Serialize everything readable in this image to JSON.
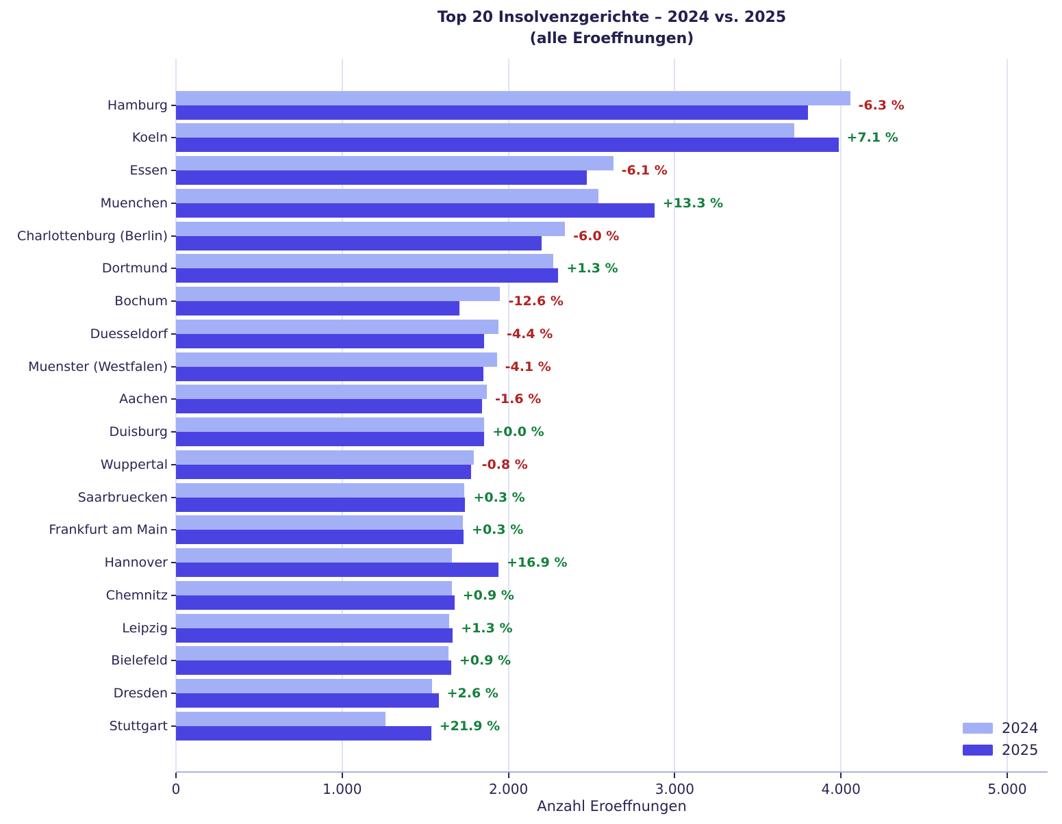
{
  "title": {
    "line1": "Top 20 Insolvenzgerichte – 2024 vs. 2025",
    "line2": "(alle Eroeffnungen)"
  },
  "chart_data": {
    "type": "bar",
    "orientation": "horizontal",
    "title": "Top 20 Insolvenzgerichte – 2024 vs. 2025 (alle Eroeffnungen)",
    "xlabel": "Anzahl Eroeffnungen",
    "ylabel": "",
    "xlim": [
      0,
      5240
    ],
    "grid": true,
    "legend_position": "lower right",
    "categories": [
      "Hamburg",
      "Koeln",
      "Essen",
      "Muenchen",
      "Charlottenburg (Berlin)",
      "Dortmund",
      "Bochum",
      "Duesseldorf",
      "Muenster (Westfalen)",
      "Aachen",
      "Duisburg",
      "Wuppertal",
      "Saarbruecken",
      "Frankfurt am Main",
      "Hannover",
      "Chemnitz",
      "Leipzig",
      "Bielefeld",
      "Dresden",
      "Stuttgart"
    ],
    "series": [
      {
        "name": "2024",
        "color": "#a4b0f6",
        "values": [
          4055,
          3720,
          2630,
          2540,
          2340,
          2270,
          1950,
          1940,
          1930,
          1870,
          1855,
          1790,
          1735,
          1725,
          1660,
          1660,
          1645,
          1640,
          1540,
          1260
        ]
      },
      {
        "name": "2025",
        "color": "#4b43e1",
        "values": [
          3800,
          3985,
          2470,
          2878,
          2200,
          2300,
          1705,
          1855,
          1850,
          1840,
          1855,
          1775,
          1740,
          1730,
          1940,
          1675,
          1665,
          1655,
          1580,
          1535
        ]
      }
    ],
    "pct_labels": [
      "-6.3 %",
      "+7.1 %",
      "-6.1 %",
      "+13.3 %",
      "-6.0 %",
      "+1.3 %",
      "-12.6 %",
      "-4.4 %",
      "-4.1 %",
      "-1.6 %",
      "+0.0 %",
      "-0.8 %",
      "+0.3 %",
      "+0.3 %",
      "+16.9 %",
      "+0.9 %",
      "+1.3 %",
      "+0.9 %",
      "+2.6 %",
      "+21.9 %"
    ],
    "pct_positive_color": "#15803c",
    "pct_negative_color": "#b22222",
    "x_ticks": [
      {
        "value": 0,
        "label": "0"
      },
      {
        "value": 1000,
        "label": "1.000"
      },
      {
        "value": 2000,
        "label": "2.000"
      },
      {
        "value": 3000,
        "label": "3.000"
      },
      {
        "value": 4000,
        "label": "4.000"
      },
      {
        "value": 5000,
        "label": "5.000"
      }
    ]
  }
}
